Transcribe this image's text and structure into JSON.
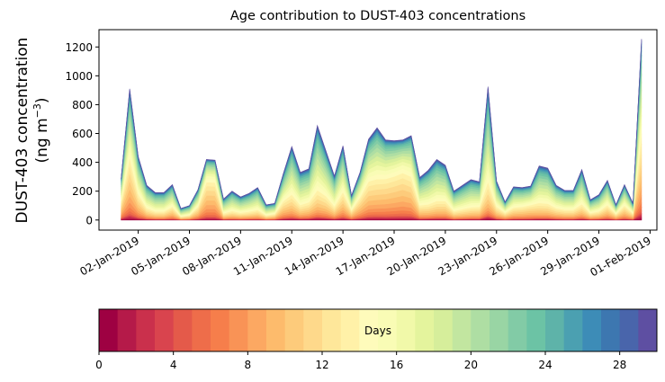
{
  "chart_data": {
    "type": "area",
    "stacked": true,
    "title": "Age contribution to DUST-403 concentrations",
    "ylabel_line1": "DUST-403 concentration",
    "ylabel_line2_prefix": "(ng m",
    "ylabel_line2_sup": "−3",
    "ylabel_line2_suffix": ")",
    "xlabel": "",
    "ylim": [
      -70,
      1320
    ],
    "yticks": [
      0,
      200,
      400,
      600,
      800,
      1000,
      1200
    ],
    "ytick_labels": [
      "0",
      "200",
      "400",
      "600",
      "800",
      "1000",
      "1200"
    ],
    "xlim_days_from_start": [
      -1.3,
      31.4
    ],
    "time_start": "01-Jan-2019 00:00",
    "time_step_hours": 12,
    "xticks_days_from_start": [
      1,
      4,
      7,
      10,
      13,
      16,
      19,
      22,
      25,
      28,
      31
    ],
    "xtick_labels": [
      "02-Jan-2019",
      "05-Jan-2019",
      "08-Jan-2019",
      "11-Jan-2019",
      "14-Jan-2019",
      "17-Jan-2019",
      "20-Jan-2019",
      "23-Jan-2019",
      "26-Jan-2019",
      "29-Jan-2019",
      "01-Feb-2019"
    ],
    "total_concentration": [
      290,
      910,
      440,
      240,
      190,
      190,
      245,
      80,
      100,
      210,
      420,
      415,
      145,
      200,
      160,
      185,
      225,
      105,
      115,
      320,
      510,
      330,
      355,
      655,
      480,
      305,
      515,
      170,
      330,
      560,
      640,
      555,
      550,
      555,
      585,
      295,
      345,
      420,
      380,
      200,
      240,
      280,
      265,
      925,
      270,
      125,
      230,
      225,
      235,
      375,
      360,
      240,
      205,
      205,
      350,
      140,
      175,
      275,
      105,
      245,
      115,
      1255
    ],
    "young_fraction": [
      0.5,
      0.55,
      0.45,
      0.35,
      0.3,
      0.3,
      0.4,
      0.3,
      0.35,
      0.5,
      0.75,
      0.75,
      0.3,
      0.3,
      0.3,
      0.3,
      0.3,
      0.3,
      0.4,
      0.45,
      0.35,
      0.3,
      0.35,
      0.3,
      0.35,
      0.3,
      0.4,
      0.45,
      0.55,
      0.55,
      0.5,
      0.6,
      0.65,
      0.7,
      0.6,
      0.35,
      0.3,
      0.3,
      0.35,
      0.3,
      0.3,
      0.3,
      0.35,
      0.25,
      0.35,
      0.45,
      0.4,
      0.45,
      0.5,
      0.3,
      0.3,
      0.35,
      0.35,
      0.35,
      0.3,
      0.35,
      0.35,
      0.4,
      0.45,
      0.45,
      0.45,
      0.55
    ],
    "series_bins": 30,
    "colorbar": {
      "label": "Days",
      "range": [
        0,
        30
      ],
      "ticks": [
        0,
        4,
        8,
        12,
        16,
        20,
        24,
        28
      ],
      "tick_labels": [
        "0",
        "4",
        "8",
        "12",
        "16",
        "20",
        "24",
        "28"
      ],
      "colormap": "Spectral",
      "colors": [
        "#9e0142",
        "#b51a49",
        "#ca304c",
        "#d9444e",
        "#e45a4a",
        "#ee6d4a",
        "#f67e4b",
        "#f99356",
        "#fca862",
        "#fdbb6c",
        "#fdcb7b",
        "#fed98b",
        "#fee79a",
        "#fff1a8",
        "#fefbbb",
        "#f9fcb5",
        "#f1f9a9",
        "#e4f49d",
        "#d6ee9b",
        "#c2e6a0",
        "#aedea3",
        "#99d5a4",
        "#82cba6",
        "#6cc3a5",
        "#5eb3a9",
        "#4ba0b1",
        "#3d8cb7",
        "#3d77b0",
        "#4965ab",
        "#5e4fa2"
      ]
    }
  }
}
